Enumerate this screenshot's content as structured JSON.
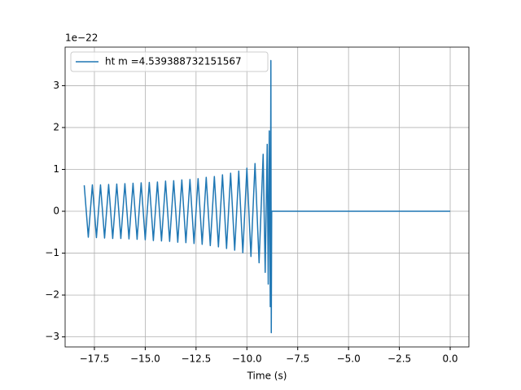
{
  "chart_data": {
    "type": "line",
    "x_label": "Time (s)",
    "y_offset_label": "1e−22",
    "x": [
      -18.0,
      -17.8,
      -17.6,
      -17.4,
      -17.2,
      -17.0,
      -16.8,
      -16.6,
      -16.4,
      -16.2,
      -16.0,
      -15.8,
      -15.6,
      -15.4,
      -15.2,
      -15.0,
      -14.8,
      -14.6,
      -14.4,
      -14.2,
      -14.0,
      -13.8,
      -13.6,
      -13.4,
      -13.2,
      -13.0,
      -12.8,
      -12.6,
      -12.4,
      -12.2,
      -12.0,
      -11.8,
      -11.6,
      -11.4,
      -11.2,
      -11.0,
      -10.8,
      -10.6,
      -10.4,
      -10.2,
      -10.0,
      -9.8,
      -9.6,
      -9.4,
      -9.2,
      -9.1,
      -9.0,
      -8.95,
      -8.9,
      -8.85,
      -8.82,
      -8.8,
      -8.78,
      0.0
    ],
    "series": [
      {
        "name": "ht m =4.539388732151567",
        "color": "#1f77b4",
        "values": [
          0.62,
          -0.62,
          0.63,
          -0.63,
          0.63,
          -0.64,
          0.64,
          -0.65,
          0.65,
          -0.65,
          0.66,
          -0.66,
          0.67,
          -0.67,
          0.68,
          -0.68,
          0.69,
          -0.7,
          0.7,
          -0.71,
          0.72,
          -0.72,
          0.73,
          -0.74,
          0.75,
          -0.75,
          0.76,
          -0.77,
          0.78,
          -0.79,
          0.81,
          -0.82,
          0.83,
          -0.85,
          0.87,
          -0.89,
          0.91,
          -0.93,
          0.96,
          -0.99,
          1.03,
          -1.08,
          1.14,
          -1.23,
          1.36,
          -1.46,
          1.6,
          -1.74,
          1.92,
          -2.28,
          3.6,
          -2.9,
          0,
          0
        ]
      }
    ],
    "xlim": [
      -18.94,
      0.92
    ],
    "xticks": [
      {
        "value": -17.5,
        "label": "−17.5"
      },
      {
        "value": -15,
        "label": "−15.0"
      },
      {
        "value": -12.5,
        "label": "−12.5"
      },
      {
        "value": -10,
        "label": "−10.0"
      },
      {
        "value": -7.5,
        "label": "−7.5"
      },
      {
        "value": -5,
        "label": "−5.0"
      },
      {
        "value": -2.5,
        "label": "−2.5"
      },
      {
        "value": 0,
        "label": "0.0"
      }
    ],
    "ylim": [
      -3.24,
      3.92
    ],
    "yticks": [
      {
        "value": -3,
        "label": "−3"
      },
      {
        "value": -2,
        "label": "−2"
      },
      {
        "value": -1,
        "label": "−1"
      },
      0,
      1,
      2,
      3
    ],
    "grid": true,
    "legend": "upper-left"
  }
}
